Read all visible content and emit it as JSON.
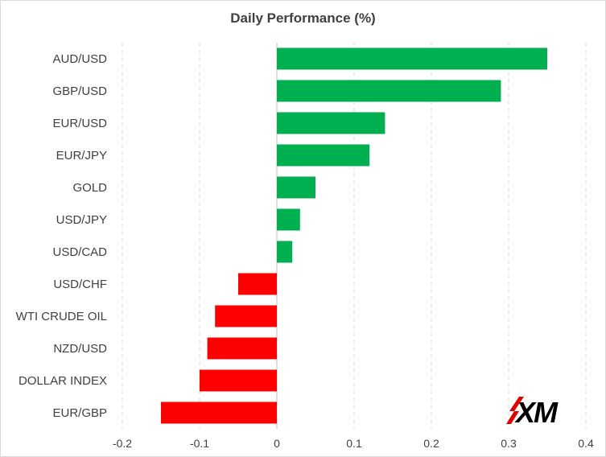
{
  "chart_data": {
    "type": "bar",
    "orientation": "horizontal",
    "title": "Daily Performance  (%)",
    "categories": [
      "AUD/USD",
      "GBP/USD",
      "EUR/USD",
      "EUR/JPY",
      "GOLD",
      "USD/JPY",
      "USD/CAD",
      "USD/CHF",
      "WTI CRUDE OIL",
      "NZD/USD",
      "DOLLAR INDEX",
      "EUR/GBP"
    ],
    "values": [
      0.35,
      0.29,
      0.14,
      0.12,
      0.05,
      0.03,
      0.02,
      -0.05,
      -0.08,
      -0.09,
      -0.1,
      -0.15
    ],
    "xlim": [
      -0.2,
      0.4
    ],
    "xticks": [
      -0.2,
      -0.1,
      0,
      0.1,
      0.2,
      0.3,
      0.4
    ],
    "xtick_labels": [
      "-0.2",
      "-0.1",
      "0",
      "0.1",
      "0.2",
      "0.3",
      "0.4"
    ],
    "grid": true,
    "legend": "none",
    "colors": {
      "positive": "#00b050",
      "negative": "#ff0000"
    }
  },
  "logo": {
    "text": "XM",
    "accent_color": "#e10000",
    "text_color": "#000000"
  }
}
